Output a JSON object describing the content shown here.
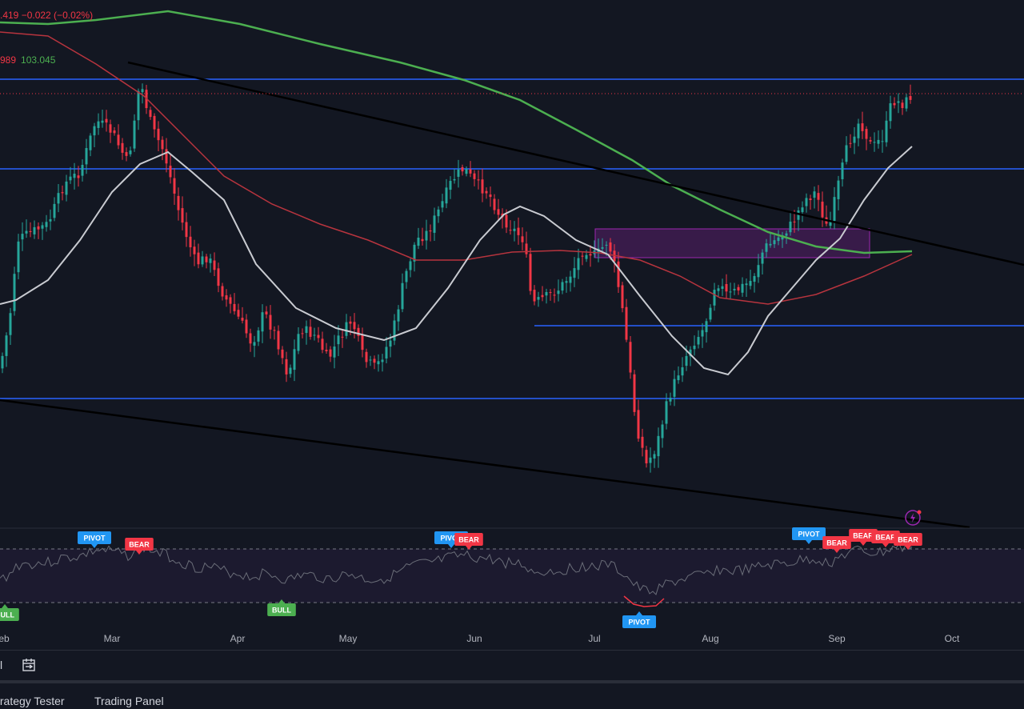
{
  "legend": {
    "line1": ".419  −0.022 (−0.02%)",
    "line2_v1": "989",
    "line2_v2": "103.045"
  },
  "colors": {
    "background": "#131722",
    "bull_candle": "#26a69a",
    "bear_candle": "#f23645",
    "sma_fast": "#c9cbd1",
    "sma_mid": "#b7343e",
    "sma_slow": "#4caf50",
    "hline": "#2962ff",
    "trendline": "#000000",
    "zone": "#9c27b0",
    "pivot": "#2196f3",
    "bull_signal": "#4caf50",
    "bear_signal": "#f23645"
  },
  "chart_data": {
    "type": "candlestick",
    "x_axis": {
      "tick_labels": [
        "eb",
        "Mar",
        "Apr",
        "May",
        "Jun",
        "Jul",
        "Aug",
        "Sep",
        "Oct"
      ]
    },
    "indicator_signals": [
      {
        "label": "BULL",
        "kind": "bull",
        "month": "Feb"
      },
      {
        "label": "PIVOT",
        "kind": "pivot",
        "month": "Mar"
      },
      {
        "label": "BEAR",
        "kind": "bear",
        "month": "Mar"
      },
      {
        "label": "BULL",
        "kind": "bull",
        "month": "Apr"
      },
      {
        "label": "PIVOT",
        "kind": "pivot",
        "month": "May"
      },
      {
        "label": "BEAR",
        "kind": "bear",
        "month": "May"
      },
      {
        "label": "PIVOT",
        "kind": "pivot",
        "month": "Jul"
      },
      {
        "label": "PIVOT",
        "kind": "pivot",
        "month": "Aug"
      },
      {
        "label": "BEAR",
        "kind": "bear",
        "month": "Aug"
      },
      {
        "label": "BEAR",
        "kind": "bear",
        "month": "Sep"
      },
      {
        "label": "BEAR",
        "kind": "bear",
        "month": "Sep"
      },
      {
        "label": "BEAR",
        "kind": "bear",
        "month": "Sep"
      }
    ]
  },
  "toolbar": {
    "left_text": "l"
  },
  "bottom_tabs": {
    "strategy": "trategy Tester",
    "trading": "Trading Panel"
  }
}
